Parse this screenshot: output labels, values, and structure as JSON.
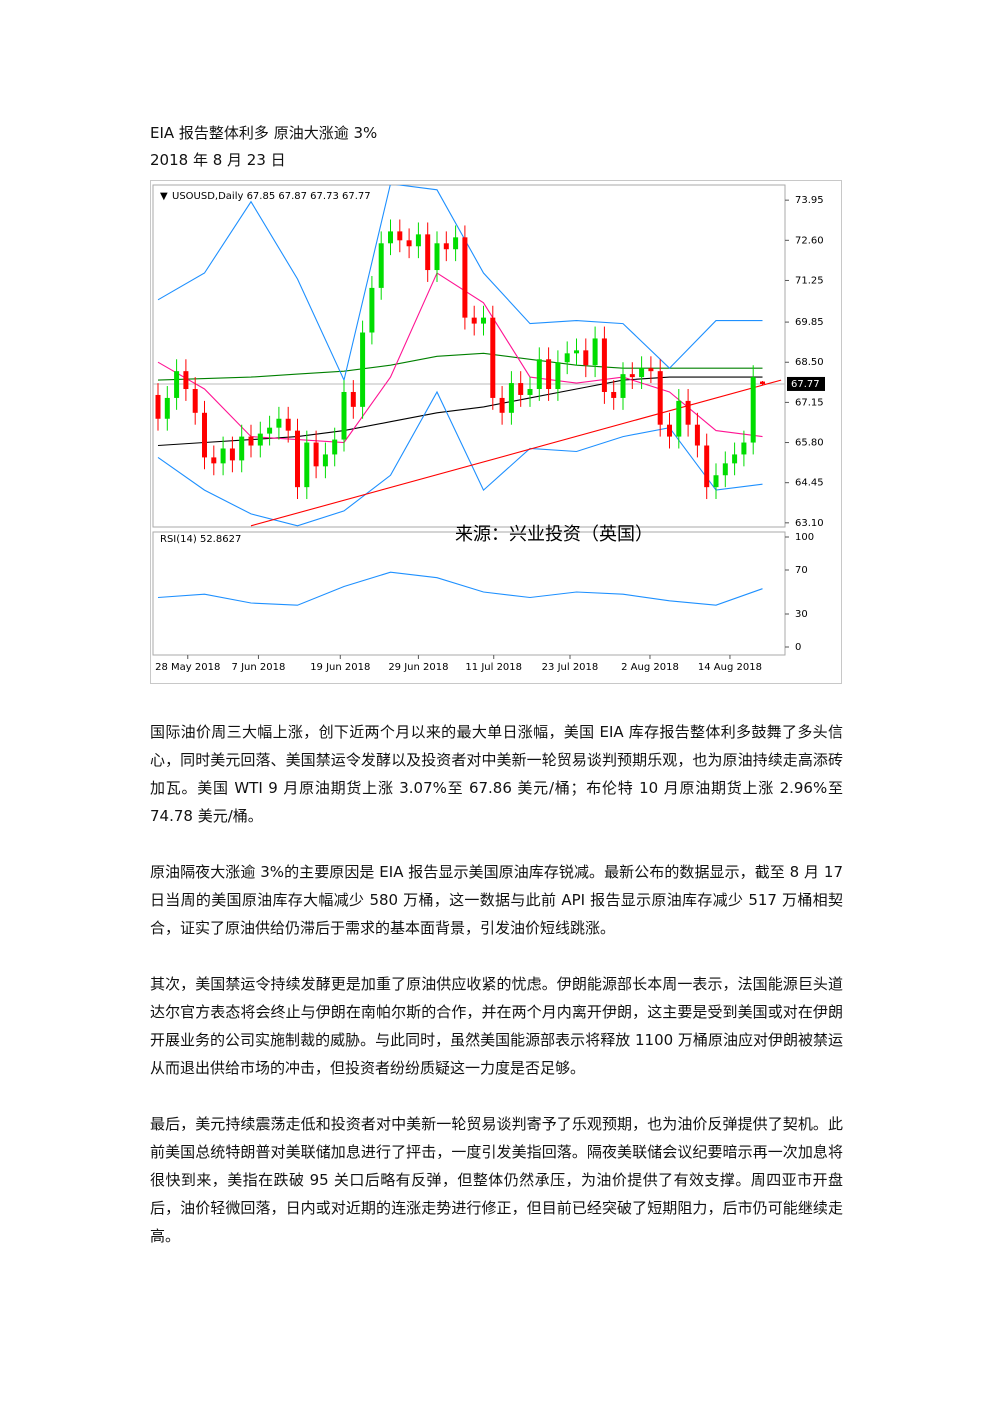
{
  "header": {
    "title": "EIA 报告整体利多 原油大涨逾 3%",
    "date": "2018 年 8 月 23 日"
  },
  "chart_data": {
    "type": "candlestick",
    "symbol_label": "USOUSD,Daily  67.85 67.87 67.73 67.77",
    "annotation": "来源：兴业投资（英国）",
    "up_color": "#00dd00",
    "down_color": "#ff0000",
    "open": [
      67.4,
      66.6,
      67.3,
      68.2,
      67.6,
      66.8,
      65.3,
      65.1,
      65.6,
      65.2,
      66.0,
      65.7,
      66.1,
      66.3,
      66.6,
      66.2,
      64.3,
      65.8,
      65.0,
      65.4,
      65.9,
      67.5,
      67.0,
      69.5,
      71.0,
      72.5,
      72.9,
      72.6,
      72.4,
      72.8,
      71.6,
      72.5,
      72.3,
      72.7,
      70.0,
      69.8,
      70.0,
      67.3,
      66.8,
      67.8,
      67.4,
      67.6,
      68.6,
      67.6,
      68.5,
      68.8,
      68.9,
      68.4,
      69.3,
      67.5,
      67.3,
      68.1,
      68.0,
      68.3,
      68.2,
      66.4,
      66.0,
      67.2,
      66.4,
      65.7,
      64.3,
      64.7,
      65.1,
      65.4,
      65.8,
      67.85
    ],
    "high": [
      67.8,
      67.7,
      68.6,
      68.6,
      68.0,
      67.2,
      65.7,
      66.0,
      66.0,
      66.4,
      66.4,
      66.5,
      66.7,
      67.0,
      67.0,
      66.6,
      66.2,
      66.2,
      65.8,
      66.3,
      67.9,
      67.9,
      69.9,
      71.4,
      72.9,
      73.3,
      73.3,
      73.0,
      73.2,
      73.2,
      72.9,
      72.9,
      73.1,
      73.1,
      70.4,
      70.4,
      70.4,
      67.7,
      68.2,
      68.2,
      68.0,
      69.0,
      69.0,
      68.9,
      69.2,
      69.3,
      69.3,
      69.7,
      69.7,
      67.9,
      68.5,
      68.5,
      68.7,
      68.7,
      68.6,
      66.8,
      67.6,
      67.6,
      66.8,
      66.1,
      65.1,
      65.5,
      65.8,
      66.2,
      68.4,
      67.87
    ],
    "low": [
      66.2,
      66.2,
      66.9,
      67.2,
      66.4,
      64.9,
      64.7,
      64.7,
      64.8,
      64.8,
      65.3,
      65.3,
      65.7,
      65.9,
      65.8,
      63.9,
      63.9,
      64.6,
      64.6,
      65.0,
      65.5,
      66.6,
      66.6,
      69.1,
      70.6,
      72.1,
      72.2,
      72.0,
      72.0,
      71.2,
      71.2,
      71.9,
      71.9,
      69.6,
      69.4,
      69.4,
      66.9,
      66.4,
      66.4,
      67.0,
      67.0,
      67.2,
      67.2,
      67.2,
      68.1,
      68.4,
      68.0,
      68.0,
      67.1,
      66.9,
      66.9,
      67.6,
      67.6,
      67.8,
      66.0,
      65.6,
      65.6,
      66.0,
      65.3,
      63.9,
      63.9,
      64.3,
      64.7,
      65.0,
      65.4,
      67.73
    ],
    "close": [
      66.6,
      67.3,
      68.2,
      67.6,
      66.8,
      65.3,
      65.1,
      65.6,
      65.2,
      66.0,
      65.7,
      66.1,
      66.3,
      66.6,
      66.2,
      64.3,
      65.8,
      65.0,
      65.4,
      65.9,
      67.5,
      67.0,
      69.5,
      71.0,
      72.5,
      72.9,
      72.6,
      72.4,
      72.8,
      71.6,
      72.5,
      72.3,
      72.7,
      70.0,
      69.8,
      70.0,
      67.3,
      66.8,
      67.8,
      67.4,
      67.6,
      68.6,
      67.6,
      68.5,
      68.8,
      68.9,
      68.4,
      69.3,
      67.5,
      67.3,
      68.1,
      68.0,
      68.3,
      68.2,
      66.4,
      66.0,
      67.2,
      66.4,
      65.7,
      64.3,
      64.7,
      65.1,
      65.4,
      65.8,
      68.0,
      67.77
    ],
    "ylim": [
      62.96,
      74.46
    ],
    "yticks": [
      73.95,
      {
        "value": 72.6,
        "label": "72.60"
      },
      71.25,
      69.85,
      {
        "value": 68.5,
        "label": "68.50"
      },
      67.15,
      {
        "value": 65.8,
        "label": "65.80"
      },
      64.45,
      {
        "value": 63.1,
        "label": "63.10"
      }
    ],
    "last_price": 67.77,
    "xticks": [
      {
        "value": 3.2,
        "label": "28 May 2018"
      },
      {
        "value": 10.8,
        "label": "7 Jun 2018"
      },
      {
        "value": 19.6,
        "label": "19 Jun 2018"
      },
      {
        "value": 28,
        "label": "29 Jun 2018"
      },
      {
        "value": 36.1,
        "label": "11 Jul 2018"
      },
      {
        "value": 44.3,
        "label": "23 Jul 2018"
      },
      {
        "value": 52.9,
        "label": "2 Aug 2018"
      },
      {
        "value": 61.5,
        "label": "14 Aug 2018"
      }
    ],
    "lines": [
      {
        "color": "#008000",
        "x": [
          0,
          5,
          10,
          15,
          20,
          25,
          30,
          35,
          40,
          45,
          50,
          55,
          60,
          65
        ],
        "values": [
          67.9,
          67.95,
          68.0,
          68.1,
          68.2,
          68.4,
          68.7,
          68.8,
          68.6,
          68.4,
          68.3,
          68.3,
          68.3,
          68.3
        ]
      },
      {
        "color": "#000000",
        "x": [
          0,
          5,
          10,
          15,
          20,
          25,
          30,
          35,
          40,
          45,
          50,
          55,
          60,
          65
        ],
        "values": [
          65.7,
          65.8,
          65.9,
          66.0,
          66.2,
          66.5,
          66.8,
          67.0,
          67.3,
          67.6,
          67.9,
          68.0,
          68.0,
          68.0
        ]
      },
      {
        "color": "#1e90ff",
        "x": [
          0,
          5,
          10,
          15,
          20,
          25,
          30,
          35,
          40,
          45,
          50,
          55,
          60,
          65
        ],
        "values": [
          70.6,
          71.5,
          73.9,
          71.3,
          67.9,
          74.5,
          74.3,
          71.5,
          69.8,
          69.9,
          69.8,
          68.3,
          69.9,
          69.9
        ]
      },
      {
        "color": "#1e90ff",
        "x": [
          0,
          5,
          10,
          15,
          20,
          25,
          30,
          35,
          40,
          45,
          50,
          55,
          60,
          65
        ],
        "values": [
          65.3,
          64.2,
          63.4,
          63.0,
          63.5,
          64.7,
          67.5,
          64.2,
          65.6,
          65.5,
          66.0,
          66.3,
          64.2,
          64.4
        ]
      },
      {
        "color": "#ff1493",
        "x": [
          0,
          5,
          10,
          15,
          20,
          25,
          30,
          35,
          40,
          45,
          50,
          55,
          60,
          65
        ],
        "values": [
          68.5,
          67.6,
          66.0,
          65.9,
          65.8,
          68.0,
          71.5,
          70.5,
          68.0,
          67.8,
          68.0,
          67.5,
          66.2,
          66.0
        ]
      },
      {
        "color": "#ff0000",
        "x": [
          10,
          67
        ],
        "values": [
          63.0,
          67.9
        ]
      }
    ],
    "rsi": {
      "label": "RSI(14) 52.8627",
      "color": "#1e90ff",
      "ylim": [
        0,
        100
      ],
      "yticks": [
        100,
        70,
        30,
        0
      ],
      "x": [
        0,
        5,
        10,
        15,
        20,
        25,
        30,
        35,
        40,
        45,
        50,
        55,
        60,
        65
      ],
      "values": [
        45,
        48,
        40,
        38,
        55,
        68,
        63,
        50,
        45,
        50,
        48,
        42,
        38,
        53
      ]
    }
  },
  "body": {
    "paragraphs": [
      "国际油价周三大幅上涨，创下近两个月以来的最大单日涨幅，美国 EIA 库存报告整体利多鼓舞了多头信心，同时美元回落、美国禁运令发酵以及投资者对中美新一轮贸易谈判预期乐观，也为原油持续走高添砖加瓦。美国 WTI 9 月原油期货上涨 3.07%至 67.86 美元/桶；布伦特 10 月原油期货上涨 2.96%至 74.78 美元/桶。",
      "原油隔夜大涨逾 3%的主要原因是 EIA 报告显示美国原油库存锐减。最新公布的数据显示，截至 8 月 17 日当周的美国原油库存大幅减少 580 万桶，这一数据与此前 API 报告显示原油库存减少 517 万桶相契合，证实了原油供给仍滞后于需求的基本面背景，引发油价短线跳涨。",
      "其次，美国禁运令持续发酵更是加重了原油供应收紧的忧虑。伊朗能源部长本周一表示，法国能源巨头道达尔官方表态将会终止与伊朗在南帕尔斯的合作，并在两个月内离开伊朗，这主要是受到美国或对在伊朗开展业务的公司实施制裁的威胁。与此同时，虽然美国能源部表示将释放 1100 万桶原油应对伊朗被禁运从而退出供给市场的冲击，但投资者纷纷质疑这一力度是否足够。",
      "最后，美元持续震荡走低和投资者对中美新一轮贸易谈判寄予了乐观预期，也为油价反弹提供了契机。此前美国总统特朗普对美联储加息进行了抨击，一度引发美指回落。隔夜美联储会议纪要暗示再一次加息将很快到来，美指在跌破 95 关口后略有反弹，但整体仍然承压，为油价提供了有效支撑。周四亚市开盘后，油价轻微回落，日内或对近期的连涨走势进行修正，但目前已经突破了短期阻力，后市仍可能继续走高。"
    ]
  }
}
